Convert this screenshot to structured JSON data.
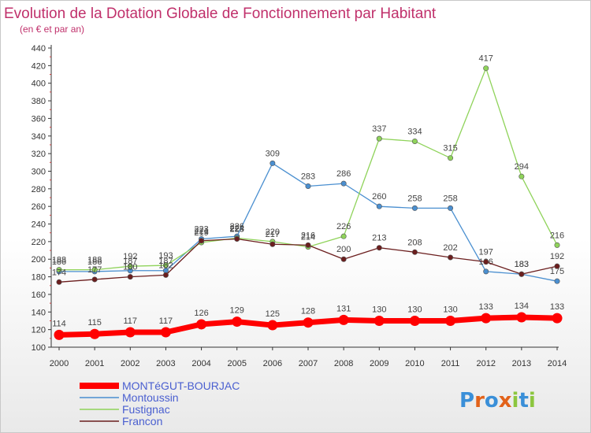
{
  "title": "Evolution de la Dotation Globale de Fonctionnement par Habitant",
  "subtitle": "(en € et par an)",
  "logo_text": "Proxiti",
  "chart_data": {
    "type": "line",
    "title": "Evolution de la Dotation Globale de Fonctionnement par Habitant",
    "subtitle": "(en € et par an)",
    "xlabel": "",
    "ylabel": "",
    "x": [
      "2000",
      "2001",
      "2002",
      "2003",
      "2004",
      "2005",
      "2006",
      "2007",
      "2008",
      "2009",
      "2010",
      "2011",
      "2012",
      "2013",
      "2014"
    ],
    "ylim": [
      100,
      440
    ],
    "ytick_step": 20,
    "grid": false,
    "legend_position": "bottom-left",
    "series": [
      {
        "name": "MONTéGUT-BOURJAC",
        "color": "#ff0000",
        "style": "thick",
        "values": [
          114,
          115,
          117,
          117,
          126,
          129,
          125,
          128,
          131,
          130,
          130,
          130,
          133,
          134,
          133
        ]
      },
      {
        "name": "Montoussin",
        "color": "#4a8fd0",
        "style": "thin",
        "values": [
          186,
          186,
          187,
          187,
          223,
          226,
          309,
          283,
          286,
          260,
          258,
          258,
          186,
          183,
          175
        ]
      },
      {
        "name": "Fustignac",
        "color": "#8fd35a",
        "style": "thin",
        "values": [
          188,
          188,
          192,
          193,
          219,
          224,
          220,
          214,
          226,
          337,
          334,
          315,
          417,
          294,
          216
        ]
      },
      {
        "name": "Francon",
        "color": "#6b1e1e",
        "style": "thin",
        "values": [
          174,
          177,
          180,
          182,
          221,
          223,
          217,
          216,
          200,
          213,
          208,
          202,
          197,
          183,
          192
        ]
      }
    ]
  }
}
